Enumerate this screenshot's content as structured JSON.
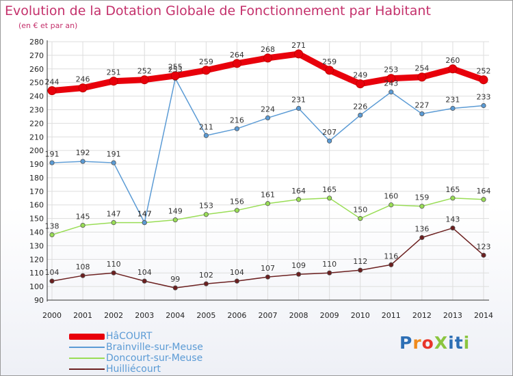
{
  "title": "Evolution de la Dotation Globale de Fonctionnement par Habitant",
  "subtitle": "(en € et par an)",
  "logo": "ProXiti",
  "chart_data": {
    "type": "line",
    "x": [
      "2000",
      "2001",
      "2002",
      "2003",
      "2004",
      "2005",
      "2006",
      "2007",
      "2008",
      "2009",
      "2010",
      "2011",
      "2012",
      "2013",
      "2014"
    ],
    "ylim": [
      90,
      280
    ],
    "yticks": [
      90,
      100,
      110,
      120,
      130,
      140,
      150,
      160,
      170,
      180,
      190,
      200,
      210,
      220,
      230,
      240,
      250,
      260,
      270,
      280
    ],
    "grid": true,
    "legend_position": "bottom-left",
    "series": [
      {
        "name": "HâCOURT",
        "color": "#e8000b",
        "values": [
          244,
          246,
          251,
          252,
          255,
          259,
          264,
          268,
          271,
          259,
          249,
          253,
          254,
          260,
          252
        ]
      },
      {
        "name": "Brainville-sur-Meuse",
        "color": "#5b9bd5",
        "values": [
          191,
          192,
          191,
          147,
          253,
          211,
          216,
          224,
          231,
          207,
          226,
          243,
          227,
          231,
          233
        ]
      },
      {
        "name": "Doncourt-sur-Meuse",
        "color": "#99dd55",
        "values": [
          138,
          145,
          147,
          147,
          149,
          153,
          156,
          161,
          164,
          165,
          150,
          160,
          159,
          165,
          164
        ]
      },
      {
        "name": "Huilliécourt",
        "color": "#6b1f1f",
        "values": [
          104,
          108,
          110,
          104,
          99,
          102,
          104,
          107,
          109,
          110,
          112,
          116,
          136,
          143,
          123
        ]
      }
    ]
  }
}
